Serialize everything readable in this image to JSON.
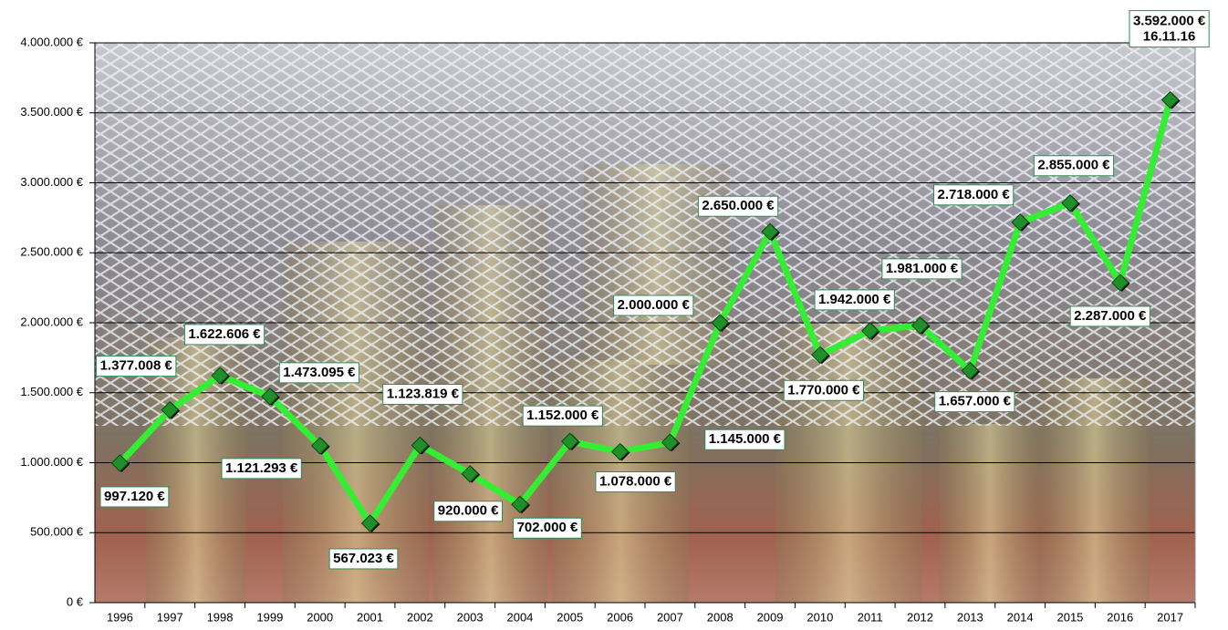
{
  "chart_data": {
    "type": "line",
    "categories": [
      "1996",
      "1997",
      "1998",
      "1999",
      "2000",
      "2001",
      "2002",
      "2003",
      "2004",
      "2005",
      "2006",
      "2007",
      "2008",
      "2009",
      "2010",
      "2011",
      "2012",
      "2013",
      "2014",
      "2015",
      "2016",
      "2017"
    ],
    "values": [
      997120,
      1377008,
      1622606,
      1473095,
      1121293,
      567023,
      1123819,
      920000,
      702000,
      1152000,
      1078000,
      1145000,
      2000000,
      2650000,
      1770000,
      1942000,
      1981000,
      1657000,
      2718000,
      2855000,
      2287000,
      3592000
    ],
    "value_labels": [
      "997.120 €",
      "1.377.008 €",
      "1.622.606 €",
      "1.473.095 €",
      "1.121.293 €",
      "567.023 €",
      "1.123.819 €",
      "920.000 €",
      "702.000 €",
      "1.152.000 €",
      "1.078.000 €",
      "1.145.000 €",
      "2.000.000 €",
      "2.650.000 €",
      "1.770.000 €",
      "1.942.000 €",
      "1.981.000 €",
      "1.657.000 €",
      "2.718.000 €",
      "2.855.000 €",
      "2.287.000 €",
      "3.592.000 €"
    ],
    "annotation": "16.11.16",
    "color": "#33ee33",
    "marker_color": "#1f8f2a",
    "ylim": [
      0,
      4000000
    ],
    "yticks": [
      {
        "value": 0,
        "label": "0 €"
      },
      {
        "value": 500000,
        "label": "500.000 €"
      },
      {
        "value": 1000000,
        "label": "1.000.000 €"
      },
      {
        "value": 1500000,
        "label": "1.500.000 €"
      },
      {
        "value": 2000000,
        "label": "2.000.000 €"
      },
      {
        "value": 2500000,
        "label": "2.500.000 €"
      },
      {
        "value": 3000000,
        "label": "3.000.000 €"
      },
      {
        "value": 3500000,
        "label": "3.500.000 €"
      },
      {
        "value": 4000000,
        "label": "4.000.000 €"
      }
    ],
    "grid": true
  }
}
